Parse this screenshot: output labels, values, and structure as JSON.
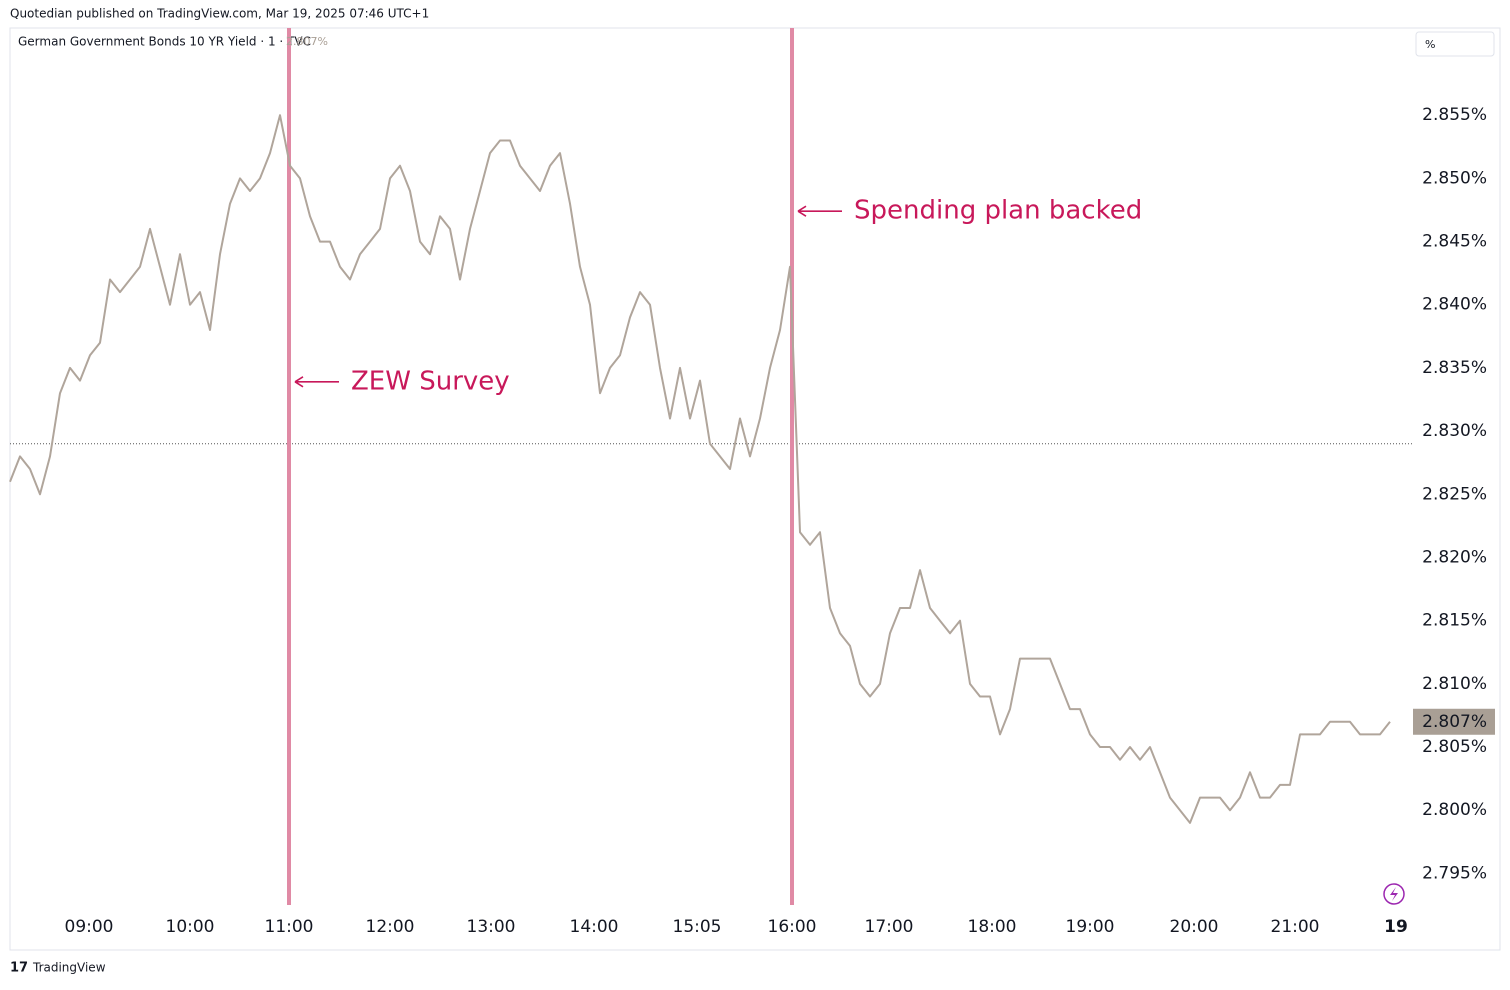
{
  "chart_data": {
    "type": "line",
    "header": "Quotedian published on TradingView.com, Mar 19, 2025 07:46 UTC+1",
    "title": "German Government Bonds 10 YR Yield · 1 · TVC",
    "unit": "%",
    "footer": "TradingView",
    "series": [
      {
        "name": "German Government Bonds 10 YR Yield",
        "color": "#b0a59b",
        "values": [
          2.826,
          2.828,
          2.827,
          2.825,
          2.828,
          2.833,
          2.835,
          2.834,
          2.836,
          2.837,
          2.842,
          2.841,
          2.842,
          2.843,
          2.846,
          2.843,
          2.84,
          2.844,
          2.84,
          2.841,
          2.838,
          2.844,
          2.848,
          2.85,
          2.849,
          2.85,
          2.852,
          2.855,
          2.851,
          2.85,
          2.847,
          2.845,
          2.845,
          2.843,
          2.842,
          2.844,
          2.845,
          2.846,
          2.85,
          2.851,
          2.849,
          2.845,
          2.844,
          2.847,
          2.846,
          2.842,
          2.846,
          2.849,
          2.852,
          2.853,
          2.853,
          2.851,
          2.85,
          2.849,
          2.851,
          2.852,
          2.848,
          2.843,
          2.84,
          2.833,
          2.835,
          2.836,
          2.839,
          2.841,
          2.84,
          2.835,
          2.831,
          2.835,
          2.831,
          2.834,
          2.829,
          2.828,
          2.827,
          2.831,
          2.828,
          2.831,
          2.835,
          2.838,
          2.843,
          2.822,
          2.821,
          2.822,
          2.816,
          2.814,
          2.813,
          2.81,
          2.809,
          2.81,
          2.814,
          2.816,
          2.816,
          2.819,
          2.816,
          2.815,
          2.814,
          2.815,
          2.81,
          2.809,
          2.809,
          2.806,
          2.808,
          2.812,
          2.812,
          2.812,
          2.812,
          2.81,
          2.808,
          2.808,
          2.806,
          2.805,
          2.805,
          2.804,
          2.805,
          2.804,
          2.805,
          2.803,
          2.801,
          2.8,
          2.799,
          2.801,
          2.801,
          2.801,
          2.8,
          2.801,
          2.803,
          2.801,
          2.801,
          2.802,
          2.802,
          2.806,
          2.806,
          2.806,
          2.807,
          2.807,
          2.807,
          2.806,
          2.806,
          2.806,
          2.807
        ]
      }
    ],
    "last_value": 2.807,
    "last_value_label": "2.807%",
    "prev_close": 2.829,
    "xlim": [
      0,
      140
    ],
    "xticks": [
      {
        "value": 7.9,
        "label": "09:00"
      },
      {
        "value": 18,
        "label": "10:00"
      },
      {
        "value": 27.9,
        "label": "11:00"
      },
      {
        "value": 38,
        "label": "12:00"
      },
      {
        "value": 48.1,
        "label": "13:00"
      },
      {
        "value": 58.4,
        "label": "14:00"
      },
      {
        "value": 68.7,
        "label": "15:05"
      },
      {
        "value": 78.2,
        "label": "16:00"
      },
      {
        "value": 87.9,
        "label": "17:00"
      },
      {
        "value": 98.2,
        "label": "18:00"
      },
      {
        "value": 108,
        "label": "19:00"
      },
      {
        "value": 118.4,
        "label": "20:00"
      },
      {
        "value": 128.5,
        "label": "21:00"
      },
      {
        "value": 138.6,
        "label": "19"
      }
    ],
    "ylim": [
      2.7925,
      2.8619
    ],
    "yticks": [
      {
        "value": 2.795,
        "label": "2.795%"
      },
      {
        "value": 2.8,
        "label": "2.800%"
      },
      {
        "value": 2.805,
        "label": "2.805%"
      },
      {
        "value": 2.81,
        "label": "2.810%"
      },
      {
        "value": 2.815,
        "label": "2.815%"
      },
      {
        "value": 2.82,
        "label": "2.820%"
      },
      {
        "value": 2.825,
        "label": "2.825%"
      },
      {
        "value": 2.83,
        "label": "2.830%"
      },
      {
        "value": 2.835,
        "label": "2.835%"
      },
      {
        "value": 2.84,
        "label": "2.840%"
      },
      {
        "value": 2.845,
        "label": "2.845%"
      },
      {
        "value": 2.85,
        "label": "2.850%"
      },
      {
        "value": 2.855,
        "label": "2.855%"
      }
    ],
    "annotations": [
      {
        "text": "ZEW Survey",
        "x": 27.9,
        "y": 2.8339
      },
      {
        "text": "Spending plan backed",
        "x": 78.2,
        "y": 2.8474
      }
    ],
    "annotation_color": "#c8185a",
    "vline_color": "#e08aa5"
  }
}
